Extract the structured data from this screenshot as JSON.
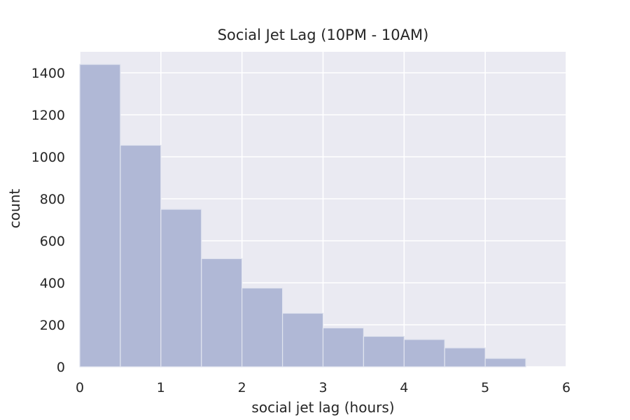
{
  "chart_data": {
    "type": "bar",
    "title": "Social Jet Lag (10PM - 10AM)",
    "xlabel": "social jet lag (hours)",
    "ylabel": "count",
    "bin_edges": [
      0,
      0.5,
      1,
      1.5,
      2,
      2.5,
      3,
      3.5,
      4,
      4.5,
      5,
      5.5,
      6
    ],
    "values": [
      1440,
      1055,
      750,
      515,
      375,
      255,
      185,
      145,
      130,
      90,
      40,
      0
    ],
    "xlim": [
      0,
      6
    ],
    "ylim": [
      0,
      1500
    ],
    "xticks": [
      "0",
      "1",
      "2",
      "3",
      "4",
      "5",
      "6"
    ],
    "yticks": [
      "0",
      "200",
      "400",
      "600",
      "800",
      "1000",
      "1200",
      "1400"
    ],
    "grid": true,
    "colors": {
      "bar": "#b0b8d6",
      "bar_edge": "#e1e4ef",
      "background": "#eaeaf2",
      "grid": "#ffffff"
    }
  }
}
